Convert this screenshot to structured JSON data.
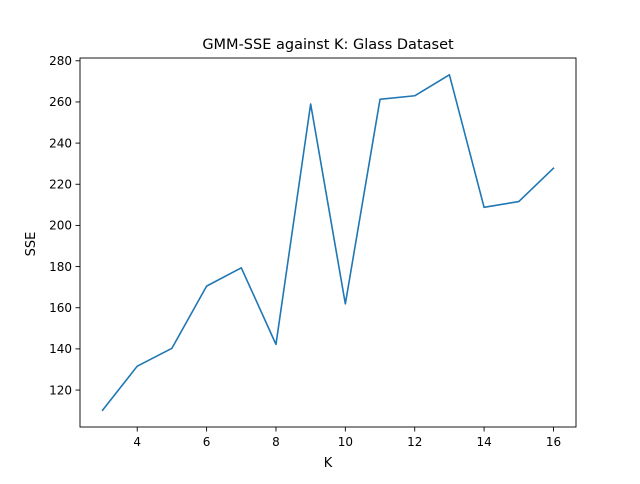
{
  "chart_data": {
    "type": "line",
    "title": "GMM-SSE against K: Glass Dataset",
    "xlabel": "K",
    "ylabel": "SSE",
    "x": [
      3,
      4,
      5,
      6,
      7,
      8,
      9,
      10,
      11,
      12,
      13,
      14,
      15,
      16
    ],
    "series": [
      {
        "values": [
          110.2,
          131.6,
          140.3,
          170.5,
          179.4,
          142.2,
          259.0,
          161.9,
          261.3,
          263.0,
          273.2,
          208.8,
          211.6,
          227.8
        ],
        "color": "#1f77b4"
      }
    ],
    "xlim": [
      2.35,
      16.65
    ],
    "ylim": [
      102.05,
      281.35
    ],
    "xticks": [
      4,
      6,
      8,
      10,
      12,
      14,
      16
    ],
    "yticks": [
      120,
      140,
      160,
      180,
      200,
      220,
      240,
      260,
      280
    ],
    "grid": false,
    "legend": "none"
  }
}
